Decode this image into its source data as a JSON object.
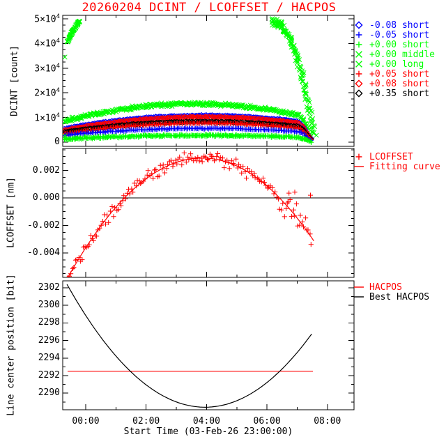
{
  "title": "20260204 DCINT / LCOFFSET / HACPOS",
  "title_color": "#ff0000",
  "xaxis": {
    "label": "Start Time (03-Feb-26 23:00:00)",
    "tick_hours": [
      0,
      2,
      4,
      6,
      8
    ],
    "tick_labels": [
      "00:00",
      "02:00",
      "04:00",
      "06:00",
      "08:00"
    ],
    "minor_hours": [
      1,
      3,
      5,
      7
    ],
    "range_hours": [
      -0.76,
      8.88
    ]
  },
  "chart_data": [
    {
      "type": "scatter",
      "panel": "DCINT",
      "ylabel": "DCINT [count]",
      "ylim": [
        -1600,
        51400
      ],
      "yticks": [
        {
          "v": 0,
          "label": "0"
        },
        {
          "v": 10000,
          "label": "1×10",
          "sup": "4"
        },
        {
          "v": 20000,
          "label": "2×10",
          "sup": "4"
        },
        {
          "v": 30000,
          "label": "3×10",
          "sup": "4"
        },
        {
          "v": 40000,
          "label": "4×10",
          "sup": "4"
        },
        {
          "v": 50000,
          "label": "5×10",
          "sup": "4"
        }
      ],
      "yminor_step": 2500,
      "t_anchors": [
        -0.7,
        -0.4,
        0,
        0.4,
        0.8,
        1.2,
        1.6,
        2,
        2.4,
        2.8,
        3.2,
        3.6,
        4,
        4.4,
        4.8,
        5.2,
        5.6,
        6,
        6.4,
        6.8,
        7.05,
        7.2,
        7.35,
        7.5
      ],
      "series": [
        {
          "name": "+0.00 middle",
          "color": "#00ff00",
          "marker": "cross",
          "passes": 2,
          "spread": 900,
          "values": [
            8500,
            9400,
            10600,
            11600,
            12500,
            13300,
            14000,
            14500,
            14950,
            15250,
            15450,
            15500,
            15450,
            15260,
            14950,
            14530,
            13980,
            13320,
            12540,
            11640,
            10980,
            9200,
            5500,
            1200
          ]
        },
        {
          "name": "-0.08 short",
          "color": "#0000ff",
          "marker": "diamond",
          "spread": 280,
          "values": [
            5500,
            6200,
            7000,
            7740,
            8400,
            8980,
            9480,
            9900,
            10240,
            10500,
            10680,
            10780,
            10800,
            10740,
            10600,
            10380,
            10080,
            9700,
            9240,
            8700,
            8280,
            6500,
            3500,
            700
          ]
        },
        {
          "name": "+0.08 short",
          "color": "#ff0000",
          "marker": "diamond",
          "spread": 280,
          "values": [
            4900,
            5600,
            6400,
            7150,
            7800,
            8380,
            8880,
            9300,
            9640,
            9900,
            10080,
            10180,
            10200,
            10140,
            10000,
            9780,
            9480,
            9100,
            8640,
            8100,
            7700,
            6000,
            3200,
            600
          ]
        },
        {
          "name": "+0.35 short",
          "color": "#000000",
          "marker": "diamond",
          "spread": 280,
          "values": [
            4000,
            4550,
            5210,
            5810,
            6350,
            6820,
            7230,
            7570,
            7840,
            8050,
            8200,
            8280,
            8300,
            8250,
            8140,
            7960,
            7710,
            7400,
            7030,
            6590,
            6280,
            5000,
            2600,
            400
          ]
        },
        {
          "name": "+0.05 short",
          "color": "#ff0000",
          "marker": "plus",
          "spread": 280,
          "values": [
            3400,
            3950,
            4610,
            5210,
            5750,
            6220,
            6630,
            6970,
            7240,
            7450,
            7600,
            7680,
            7700,
            7650,
            7540,
            7360,
            7110,
            6800,
            6430,
            5990,
            5680,
            4400,
            2200,
            300
          ]
        },
        {
          "name": "-0.05 short",
          "color": "#0000ff",
          "marker": "plus",
          "spread": 350,
          "values": [
            2800,
            3160,
            3590,
            3980,
            4330,
            4640,
            4900,
            5120,
            5300,
            5440,
            5540,
            5590,
            5600,
            5570,
            5490,
            5380,
            5220,
            5020,
            4780,
            4490,
            4290,
            3300,
            1700,
            250
          ]
        },
        {
          "name": "+0.00 short",
          "color": "#00ff00",
          "marker": "plus",
          "spread": 500,
          "passes": 2,
          "values": [
            1300,
            1480,
            1700,
            1900,
            2080,
            2230,
            2370,
            2480,
            2570,
            2630,
            2680,
            2700,
            2700,
            2675,
            2630,
            2565,
            2475,
            2365,
            2235,
            2080,
            1975,
            1500,
            800,
            150
          ]
        },
        {
          "name": "+0.00 long",
          "color": "#00ff00",
          "marker": "cross",
          "segments": [
            {
              "t": [
                -0.6,
                -0.45,
                -0.3,
                -0.2
              ],
              "v": [
                40500,
                44500,
                47500,
                49000
              ],
              "dt": 0.012,
              "spread_t": 0.02,
              "spread_v": 700,
              "passes": 2
            },
            {
              "t": [
                6.2,
                6.45,
                6.7,
                6.95,
                7.2,
                7.45,
                7.6
              ],
              "v": [
                48800,
                47800,
                43500,
                36000,
                25000,
                11000,
                2500
              ],
              "dt": 0.018,
              "spread_t": 0.07,
              "spread_v": 1800,
              "passes": 2
            }
          ],
          "outliers": [
            [
              -0.69,
              34500
            ],
            [
              -0.69,
              2500
            ]
          ]
        }
      ],
      "legend": [
        {
          "label": "-0.08 short",
          "marker": "diamond",
          "color": "#0000ff"
        },
        {
          "label": "-0.05 short",
          "marker": "plus",
          "color": "#0000ff"
        },
        {
          "label": "+0.00 short",
          "marker": "plus",
          "color": "#00ff00"
        },
        {
          "label": "+0.00 middle",
          "marker": "cross",
          "color": "#00ff00"
        },
        {
          "label": "+0.00 long",
          "marker": "cross",
          "color": "#00ff00"
        },
        {
          "label": "+0.05 short",
          "marker": "plus",
          "color": "#ff0000"
        },
        {
          "label": "+0.08 short",
          "marker": "diamond",
          "color": "#ff0000"
        },
        {
          "label": "+0.35 short",
          "marker": "diamond",
          "color": "#000000"
        }
      ]
    },
    {
      "type": "scatter",
      "panel": "LCOFFSET",
      "ylabel": "LCOFFSET [nm]",
      "ylim": [
        -0.00577,
        0.00359
      ],
      "yticks": [
        {
          "v": 0.002,
          "label": "0.002"
        },
        {
          "v": 0.0,
          "label": "0.000"
        },
        {
          "v": -0.002,
          "label": "-0.002"
        },
        {
          "v": -0.004,
          "label": "-0.004"
        }
      ],
      "yminor_step": 0.0005,
      "zero_line": 0.0,
      "scatter": {
        "name": "LCOFFSET",
        "color": "#ff0000",
        "marker": "plus",
        "t_range": [
          -0.68,
          7.5
        ],
        "noise": 0.0007,
        "outliers": [
          [
            6.73,
            0.00035
          ],
          [
            6.92,
            0.00042
          ],
          [
            7.44,
            0.0002
          ]
        ]
      },
      "fit": {
        "name": "Fitting curve",
        "color": "#ff0000",
        "peak": 0.0029,
        "t_peak": 3.85,
        "curvature": 0.00044,
        "t_range": [
          -0.65,
          7.55
        ]
      },
      "legend": [
        {
          "label": "LCOFFSET",
          "marker": "plus",
          "color": "#ff0000"
        },
        {
          "label": "Fitting curve",
          "marker": "line",
          "color": "#ff0000"
        }
      ]
    },
    {
      "type": "line",
      "panel": "HACPOS",
      "ylabel": "Line center position [bit]",
      "ylim": [
        2288.1,
        2302.8
      ],
      "yticks": [
        {
          "v": 2302,
          "label": "2302"
        },
        {
          "v": 2300,
          "label": "2300"
        },
        {
          "v": 2298,
          "label": "2298"
        },
        {
          "v": 2296,
          "label": "2296"
        },
        {
          "v": 2294,
          "label": "2294"
        },
        {
          "v": 2292,
          "label": "2292"
        },
        {
          "v": 2290,
          "label": "2290"
        }
      ],
      "yminor_step": 1,
      "series": [
        {
          "name": "HACPOS",
          "color": "#ff0000",
          "shape": "hline",
          "value": 2292.5,
          "t_range": [
            -0.6,
            7.52
          ]
        },
        {
          "name": "Best HACPOS",
          "color": "#000000",
          "shape": "parabola",
          "min": 2288.4,
          "t_min": 3.95,
          "curvature": 0.67,
          "t_range": [
            -0.62,
            7.5
          ]
        }
      ],
      "legend": [
        {
          "label": "HACPOS",
          "marker": "line",
          "color": "#ff0000"
        },
        {
          "label": "Best HACPOS",
          "marker": "line",
          "color": "#000000"
        }
      ]
    }
  ]
}
